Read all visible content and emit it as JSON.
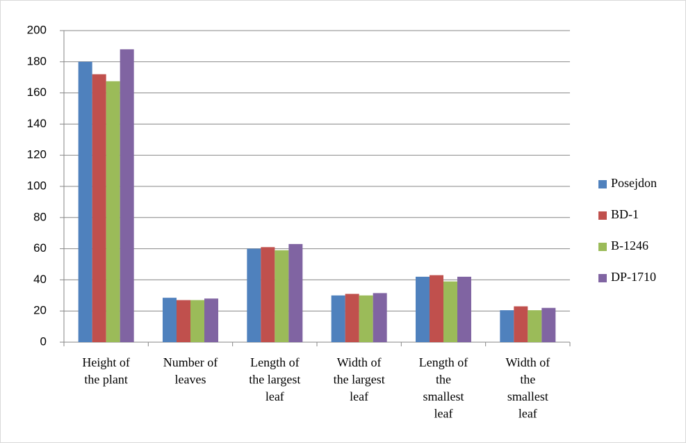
{
  "chart_data": {
    "type": "bar",
    "categories": [
      [
        "Height of",
        "the plant"
      ],
      [
        "Number of",
        "leaves"
      ],
      [
        "Length of",
        "the largest",
        "leaf"
      ],
      [
        "Width of",
        "the largest",
        "leaf"
      ],
      [
        "Length of",
        "the",
        "smallest",
        "leaf"
      ],
      [
        "Width of",
        "the",
        "smallest",
        "leaf"
      ]
    ],
    "series": [
      {
        "name": "Posejdon",
        "color": "#4f81bd",
        "values": [
          180,
          28.5,
          60,
          30,
          42,
          20.5
        ]
      },
      {
        "name": "BD-1",
        "color": "#c0504d",
        "values": [
          172,
          27,
          61,
          31,
          43,
          23
        ]
      },
      {
        "name": "B-1246",
        "color": "#9bbb59",
        "values": [
          167.5,
          27,
          59,
          30,
          39,
          20.5
        ]
      },
      {
        "name": "DP-1710",
        "color": "#8064a2",
        "values": [
          188,
          28,
          63,
          31.5,
          42,
          22
        ]
      }
    ],
    "ylim": [
      0,
      200
    ],
    "yticks": [
      0,
      20,
      40,
      60,
      80,
      100,
      120,
      140,
      160,
      180,
      200
    ],
    "grid": true,
    "legend": "right"
  }
}
